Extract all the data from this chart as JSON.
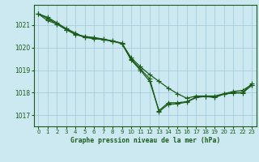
{
  "xlabel": "Graphe pression niveau de la mer (hPa)",
  "xlim": [
    -0.5,
    23.5
  ],
  "ylim": [
    1016.5,
    1021.9
  ],
  "yticks": [
    1017,
    1018,
    1019,
    1020,
    1021
  ],
  "xticks": [
    0,
    1,
    2,
    3,
    4,
    5,
    6,
    7,
    8,
    9,
    10,
    11,
    12,
    13,
    14,
    15,
    16,
    17,
    18,
    19,
    20,
    21,
    22,
    23
  ],
  "bg_color": "#cce8f0",
  "grid_color": "#a0c8d8",
  "line_color": "#1a5c1a",
  "series1": [
    1021.5,
    1021.35,
    1021.1,
    1020.85,
    1020.65,
    1020.45,
    1020.4,
    1020.35,
    1020.28,
    1020.18,
    1019.45,
    1019.0,
    1018.5,
    1017.2,
    1017.55,
    1017.55,
    1017.6,
    1017.8,
    1017.85,
    1017.8,
    1017.95,
    1018.0,
    1018.0,
    1018.4
  ],
  "series2": [
    1021.5,
    1021.2,
    1021.05,
    1020.8,
    1020.6,
    1020.5,
    1020.45,
    1020.38,
    1020.3,
    1020.2,
    1019.55,
    1019.15,
    1018.8,
    1018.5,
    1018.2,
    1017.95,
    1017.75,
    1017.85,
    1017.85,
    1017.85,
    1017.95,
    1018.05,
    1018.1,
    1018.35
  ],
  "series3": [
    1021.5,
    1021.3,
    1021.05,
    1020.8,
    1020.58,
    1020.47,
    1020.42,
    1020.37,
    1020.29,
    1020.19,
    1019.5,
    1019.05,
    1018.62,
    1017.15,
    1017.48,
    1017.5,
    1017.58,
    1017.78,
    1017.83,
    1017.78,
    1017.93,
    1017.98,
    1017.98,
    1018.32
  ],
  "marker": "+",
  "markersize": 4.0,
  "linewidth": 0.9
}
